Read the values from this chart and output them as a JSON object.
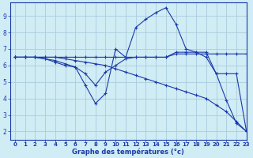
{
  "background_color": "#d0ecf4",
  "grid_color": "#aaccdd",
  "line_color": "#1a3aaa",
  "xlabel": "Graphe des températures (°c)",
  "xlim": [
    -0.5,
    23
  ],
  "ylim": [
    1.5,
    9.8
  ],
  "xticks": [
    0,
    1,
    2,
    3,
    4,
    5,
    6,
    7,
    8,
    9,
    10,
    11,
    12,
    13,
    14,
    15,
    16,
    17,
    18,
    19,
    20,
    21,
    22,
    23
  ],
  "yticks": [
    2,
    3,
    4,
    5,
    6,
    7,
    8,
    9
  ],
  "series": [
    {
      "x": [
        0,
        1,
        2,
        3,
        4,
        5,
        6,
        7,
        8,
        9,
        10,
        11,
        12,
        13,
        14,
        15,
        16,
        17,
        18,
        19,
        20,
        21,
        22,
        23
      ],
      "y": [
        6.5,
        6.5,
        6.5,
        6.5,
        6.5,
        6.4,
        6.3,
        6.2,
        6.1,
        6.0,
        5.8,
        5.6,
        5.4,
        5.2,
        5.0,
        4.8,
        4.6,
        4.4,
        4.2,
        4.0,
        3.6,
        3.2,
        2.6,
        2.0
      ]
    },
    {
      "x": [
        0,
        1,
        2,
        3,
        4,
        5,
        6,
        7,
        8,
        9,
        10,
        11,
        12,
        13,
        14,
        15,
        16,
        17,
        18,
        19,
        20,
        21,
        22,
        23
      ],
      "y": [
        6.5,
        6.5,
        6.5,
        6.5,
        6.5,
        6.5,
        6.5,
        6.5,
        6.5,
        6.5,
        6.5,
        6.5,
        6.5,
        6.5,
        6.5,
        6.5,
        6.7,
        6.7,
        6.7,
        6.7,
        6.7,
        6.7,
        6.7,
        6.7
      ]
    },
    {
      "x": [
        0,
        1,
        2,
        3,
        4,
        5,
        6,
        7,
        8,
        9,
        10,
        11,
        12,
        13,
        14,
        15,
        16,
        17,
        18,
        19,
        20,
        21,
        22,
        23
      ],
      "y": [
        6.5,
        6.5,
        6.5,
        6.4,
        6.2,
        6.0,
        5.9,
        4.8,
        3.7,
        4.3,
        7.0,
        6.5,
        8.3,
        8.8,
        9.2,
        9.5,
        8.5,
        7.0,
        6.8,
        6.5,
        5.5,
        3.9,
        2.5,
        2.0
      ]
    },
    {
      "x": [
        0,
        1,
        2,
        3,
        4,
        5,
        6,
        7,
        8,
        9,
        10,
        11,
        12,
        13,
        14,
        15,
        16,
        17,
        18,
        19,
        20,
        21,
        22,
        23
      ],
      "y": [
        6.5,
        6.5,
        6.5,
        6.4,
        6.3,
        6.1,
        5.9,
        5.5,
        4.8,
        5.6,
        6.0,
        6.4,
        6.5,
        6.5,
        6.5,
        6.5,
        6.8,
        6.8,
        6.8,
        6.8,
        5.5,
        5.5,
        5.5,
        2.0
      ]
    }
  ]
}
